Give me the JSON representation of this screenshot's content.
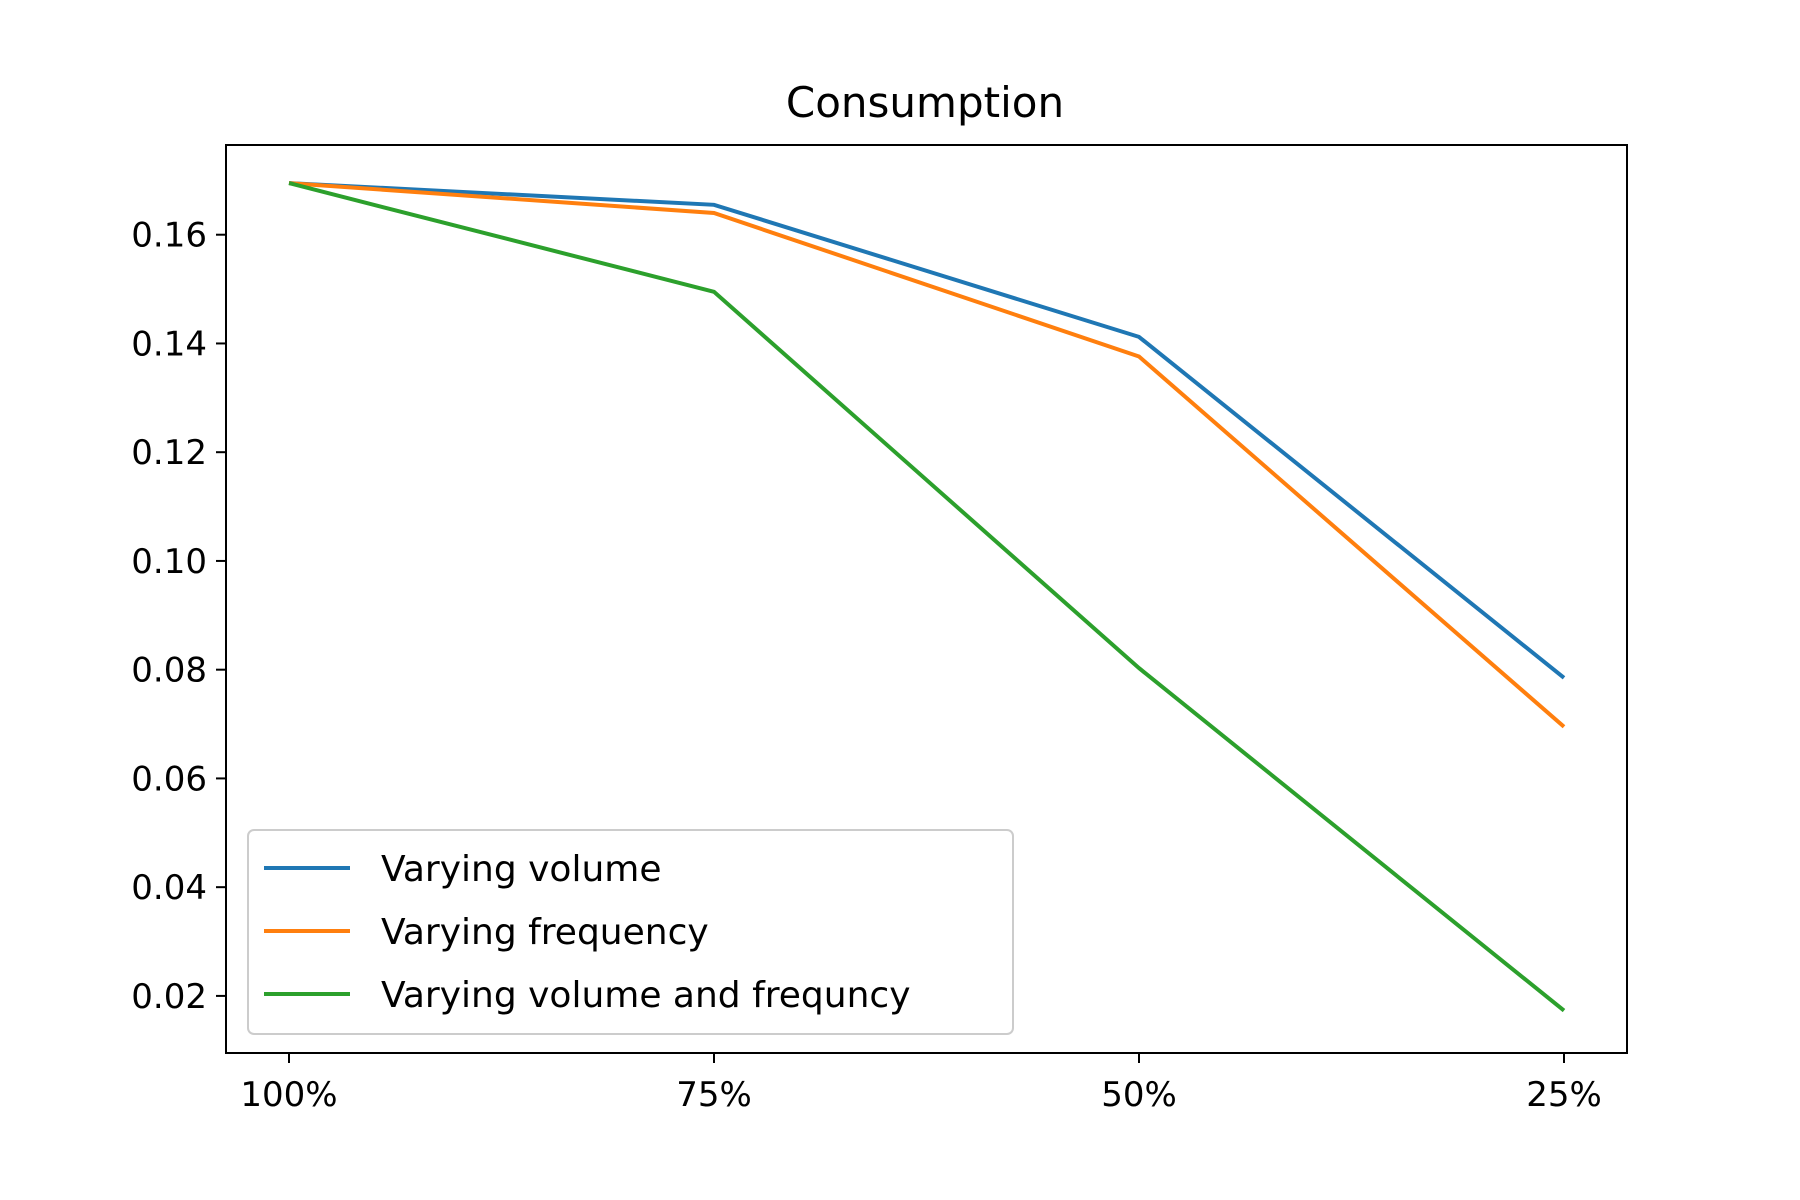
{
  "chart_data": {
    "type": "line",
    "title": "Consumption",
    "xlabel": "",
    "ylabel": "",
    "categories": [
      "100%",
      "75%",
      "50%",
      "25%"
    ],
    "ylim": [
      0.0095,
      0.1765
    ],
    "yticks": [
      0.02,
      0.04,
      0.06,
      0.08,
      0.1,
      0.12,
      0.14,
      0.16
    ],
    "ytick_labels": [
      "0.02",
      "0.04",
      "0.06",
      "0.08",
      "0.10",
      "0.12",
      "0.14",
      "0.16"
    ],
    "legend_position": "lower-left",
    "grid": false,
    "series": [
      {
        "name": "Varying volume",
        "color": "#1f77b4",
        "values": [
          0.1695,
          0.1655,
          0.1412,
          0.0785
        ]
      },
      {
        "name": "Varying frequency",
        "color": "#ff7f0e",
        "values": [
          0.1695,
          0.164,
          0.1376,
          0.0695
        ]
      },
      {
        "name": "Varying volume and frequncy",
        "color": "#2ca02c",
        "values": [
          0.1695,
          0.1495,
          0.0803,
          0.0173
        ]
      }
    ]
  }
}
